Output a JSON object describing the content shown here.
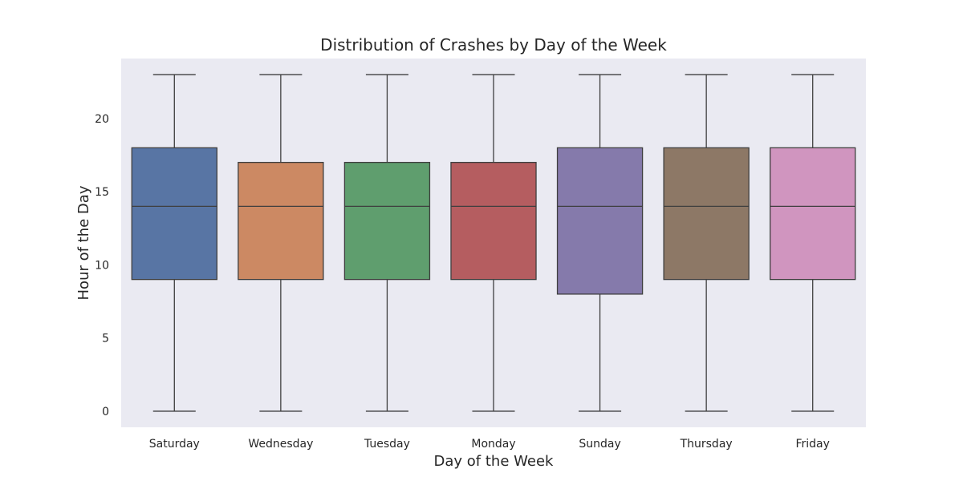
{
  "chart_data": {
    "type": "box",
    "title": "Distribution of Crashes by Day of the Week",
    "xlabel": "Day of the Week",
    "ylabel": "Hour of the Day",
    "ylim": [
      -1.1,
      24.1
    ],
    "yticks": [
      0,
      5,
      10,
      15,
      20
    ],
    "grid": false,
    "background_color": "#eaeaf2",
    "line_color": "#3f3f3f",
    "categories": [
      "Saturday",
      "Wednesday",
      "Tuesday",
      "Monday",
      "Sunday",
      "Thursday",
      "Friday"
    ],
    "boxes": [
      {
        "category": "Saturday",
        "min": 0,
        "q1": 9,
        "median": 14,
        "q3": 18,
        "max": 23,
        "color": "#5875a4"
      },
      {
        "category": "Wednesday",
        "min": 0,
        "q1": 9,
        "median": 14,
        "q3": 17,
        "max": 23,
        "color": "#cc8963"
      },
      {
        "category": "Tuesday",
        "min": 0,
        "q1": 9,
        "median": 14,
        "q3": 17,
        "max": 23,
        "color": "#5f9e6e"
      },
      {
        "category": "Monday",
        "min": 0,
        "q1": 9,
        "median": 14,
        "q3": 17,
        "max": 23,
        "color": "#b55d60"
      },
      {
        "category": "Sunday",
        "min": 0,
        "q1": 8,
        "median": 14,
        "q3": 18,
        "max": 23,
        "color": "#857aab"
      },
      {
        "category": "Thursday",
        "min": 0,
        "q1": 9,
        "median": 14,
        "q3": 18,
        "max": 23,
        "color": "#8d7866"
      },
      {
        "category": "Friday",
        "min": 0,
        "q1": 9,
        "median": 14,
        "q3": 18,
        "max": 23,
        "color": "#d095bf"
      }
    ]
  }
}
